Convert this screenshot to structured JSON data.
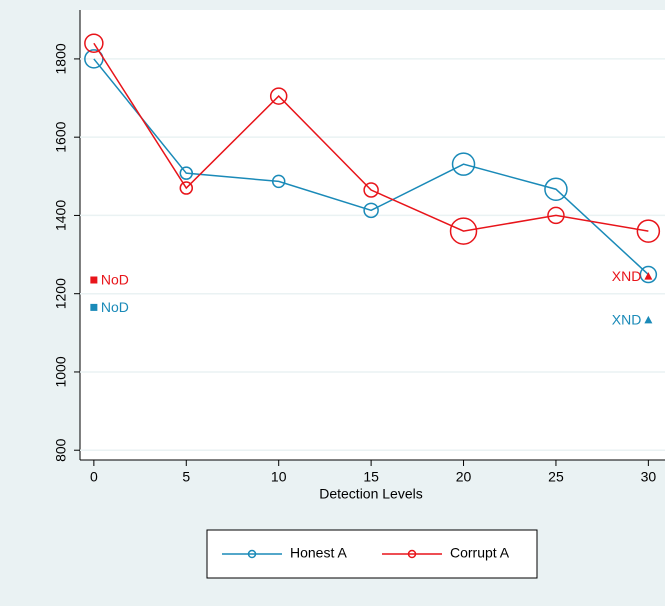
{
  "chart_data": {
    "type": "line",
    "x_label": "Detection Levels",
    "x": [
      0,
      5,
      10,
      15,
      20,
      25,
      30
    ],
    "xlim": [
      -0.75,
      30.9
    ],
    "xticks": [
      0,
      5,
      10,
      15,
      20,
      25,
      30
    ],
    "ylim": [
      775,
      1925
    ],
    "yticks": [
      800,
      1000,
      1200,
      1400,
      1600,
      1800
    ],
    "grid": true,
    "series": [
      {
        "name": "Honest A",
        "color": "#1a8ab8",
        "values": [
          1800,
          1508,
          1487,
          1413,
          1531,
          1467,
          1249
        ],
        "sizes": [
          9,
          6,
          6,
          7,
          11,
          11,
          8
        ]
      },
      {
        "name": "Corrupt A",
        "color": "#e8141a",
        "values": [
          1840,
          1470,
          1705,
          1465,
          1360,
          1400,
          1360
        ],
        "sizes": [
          9,
          6,
          8,
          7,
          13,
          8,
          11
        ]
      }
    ],
    "points": [
      {
        "label": "NoD",
        "x": 0,
        "y": 1235,
        "shape": "square",
        "color": "#e8141a"
      },
      {
        "label": "NoD",
        "x": 0,
        "y": 1165,
        "shape": "square",
        "color": "#1a8ab8"
      },
      {
        "label": "XND",
        "x": 30,
        "y": 1245,
        "shape": "triangle",
        "color": "#e8141a"
      },
      {
        "label": "XND",
        "x": 30,
        "y": 1133,
        "shape": "triangle",
        "color": "#1a8ab8"
      }
    ]
  }
}
